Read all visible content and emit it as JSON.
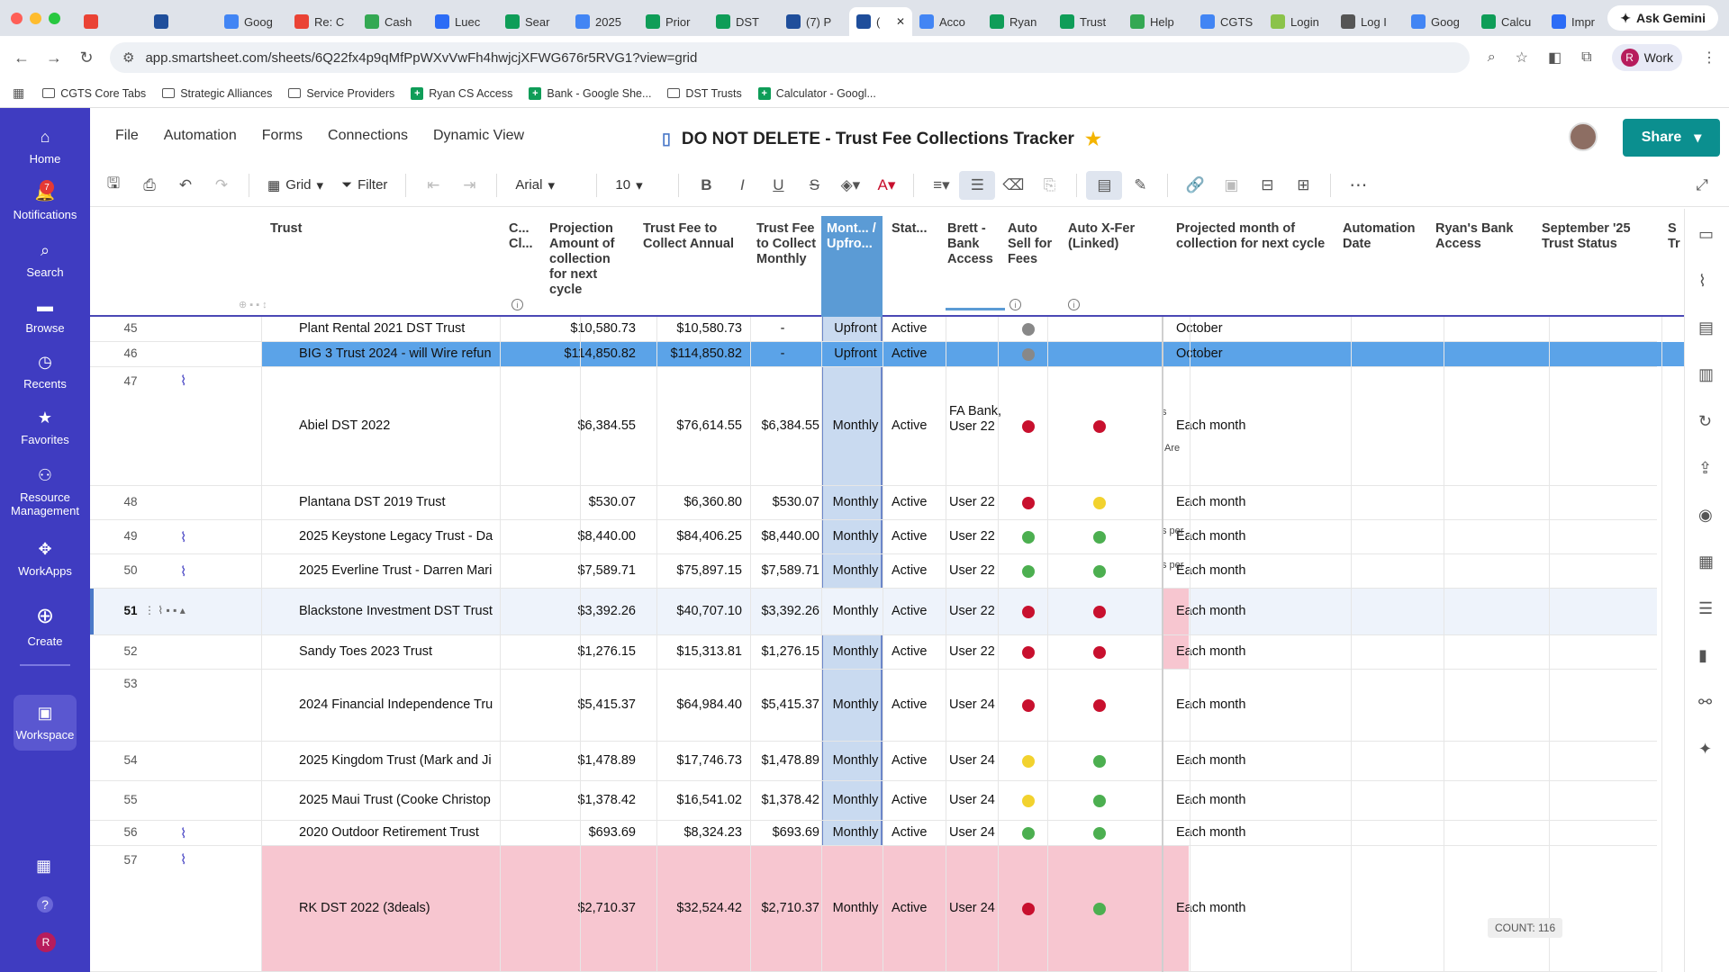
{
  "browser": {
    "tabs": [
      {
        "icon": "gmail-icon",
        "label": ""
      },
      {
        "icon": "smartsheet-icon",
        "label": ""
      },
      {
        "icon": "google-icon",
        "label": "Goog"
      },
      {
        "icon": "gmail-icon",
        "label": "Re: C"
      },
      {
        "icon": "cash-icon",
        "label": "Cash"
      },
      {
        "icon": "lucid-icon",
        "label": "Luec"
      },
      {
        "icon": "drive-icon",
        "label": "Sear"
      },
      {
        "icon": "doc-icon",
        "label": "2025"
      },
      {
        "icon": "sheet-icon",
        "label": "Prior"
      },
      {
        "icon": "sheet-icon",
        "label": "DST"
      },
      {
        "icon": "smartsheet-icon",
        "label": "(7) P"
      },
      {
        "icon": "smartsheet-icon",
        "label": "("
      },
      {
        "icon": "doc-icon",
        "label": "Acco"
      },
      {
        "icon": "sheet-icon",
        "label": "Ryan"
      },
      {
        "icon": "sheet-icon",
        "label": "Trust"
      },
      {
        "icon": "help-icon",
        "label": "Help"
      },
      {
        "icon": "doc-icon",
        "label": "CGTS"
      },
      {
        "icon": "login-icon",
        "label": "Login"
      },
      {
        "icon": "log-icon",
        "label": "Log I"
      },
      {
        "icon": "google-icon",
        "label": "Goog"
      },
      {
        "icon": "sheet-icon",
        "label": "Calcu"
      },
      {
        "icon": "lucid-icon",
        "label": "Impr"
      }
    ],
    "ask_gemini": "Ask Gemini",
    "url": "app.smartsheet.com/sheets/6Q22fx4p9qMfPpWXvVwFh4hwjcjXFWG676r5RVG1?view=grid",
    "profile": {
      "initial": "R",
      "label": "Work"
    },
    "bookmarks": [
      {
        "type": "folder",
        "label": "CGTS Core Tabs"
      },
      {
        "type": "folder",
        "label": "Strategic Alliances"
      },
      {
        "type": "folder",
        "label": "Service Providers"
      },
      {
        "type": "sheet",
        "label": "Ryan CS Access"
      },
      {
        "type": "sheet",
        "label": "Bank - Google She..."
      },
      {
        "type": "folder",
        "label": "DST Trusts"
      },
      {
        "type": "sheet",
        "label": "Calculator - Googl..."
      }
    ]
  },
  "leftnav": {
    "items": [
      {
        "icon": "home-icon",
        "label": "Home"
      },
      {
        "icon": "bell-icon",
        "label": "Notifications",
        "badge": "7"
      },
      {
        "icon": "search-icon",
        "label": "Search"
      },
      {
        "icon": "folder-icon",
        "label": "Browse"
      },
      {
        "icon": "clock-icon",
        "label": "Recents"
      },
      {
        "icon": "star-icon",
        "label": "Favorites"
      },
      {
        "icon": "people-icon",
        "label": "Resource Management"
      },
      {
        "icon": "workapps-icon",
        "label": "WorkApps"
      },
      {
        "icon": "plus-icon",
        "label": "Create"
      },
      {
        "icon": "workspace-icon",
        "label": "Workspace"
      }
    ],
    "user_initial": "R"
  },
  "menubar": [
    "File",
    "Automation",
    "Forms",
    "Connections",
    "Dynamic View"
  ],
  "sheet_title": "DO NOT DELETE - Trust Fee Collections Tracker",
  "share_label": "Share",
  "toolbar": {
    "view": "Grid",
    "filter": "Filter",
    "font": "Arial",
    "size": "10"
  },
  "columns": {
    "trust": "Trust",
    "c": "C... Cl...",
    "projection": "Projection Amount of collection for next cycle",
    "annual": "Trust Fee to Collect Annual",
    "monthly": "Trust Fee to Collect Monthly",
    "month": "Mont... / Upfro...",
    "status": "Stat...",
    "bank": "Brett - Bank Access",
    "autosell": "Auto Sell for Fees",
    "autoxfer": "Auto X-Fer (Linked)",
    "projected_month": "Projected month of collection for next cycle",
    "automation_date": "Automation Date",
    "ryan_bank": "Ryan's Bank Access",
    "sept": "September '25 Trust Status",
    "next": "S Tr"
  },
  "rows": [
    {
      "num": "45",
      "trust": "Plant Rental 2021 DST Trust",
      "projection": "$10,580.73",
      "annual": "$10,580.73",
      "monthly": "-",
      "month": "Upfront",
      "status": "Active",
      "bank": "",
      "autosell": "gray",
      "autoxfer": "",
      "projected": "October"
    },
    {
      "num": "46",
      "trust": "BIG 3 Trust 2024 - will Wire refun",
      "projection": "$114,850.82",
      "annual": "$114,850.82",
      "monthly": "-",
      "month": "Upfront",
      "status": "Active",
      "bank": "",
      "autosell": "gray",
      "autoxfer": "",
      "projected": "October"
    },
    {
      "num": "47",
      "trust": "Abiel DST 2022",
      "projection": "$6,384.55",
      "annual": "$76,614.55",
      "monthly": "$6,384.55",
      "month": "Monthly",
      "status": "Active",
      "bank": "FA Bank, User 22",
      "autosell": "red",
      "autoxfer": "red",
      "projected": "Each month",
      "side1": "s",
      "side2": "Are"
    },
    {
      "num": "48",
      "trust": "Plantana DST 2019 Trust",
      "projection": "$530.07",
      "annual": "$6,360.80",
      "monthly": "$530.07",
      "month": "Monthly",
      "status": "Active",
      "bank": "User 22",
      "autosell": "red",
      "autoxfer": "yellow",
      "projected": "Each month"
    },
    {
      "num": "49",
      "trust": "2025 Keystone Legacy Trust - Da",
      "projection": "$8,440.00",
      "annual": "$84,406.25",
      "monthly": "$8,440.00",
      "month": "Monthly",
      "status": "Active",
      "bank": "User 22",
      "autosell": "green",
      "autoxfer": "green",
      "projected": "Each month",
      "side1": "s per"
    },
    {
      "num": "50",
      "trust": "2025 Everline Trust - Darren Mari",
      "projection": "$7,589.71",
      "annual": "$75,897.15",
      "monthly": "$7,589.71",
      "month": "Monthly",
      "status": "Active",
      "bank": "User 22",
      "autosell": "green",
      "autoxfer": "green",
      "projected": "Each month",
      "side1": "s per"
    },
    {
      "num": "51",
      "trust": "Blackstone Investment DST Trust",
      "projection": "$3,392.26",
      "annual": "$40,707.10",
      "monthly": "$3,392.26",
      "month": "Monthly",
      "status": "Active",
      "bank": "User 22",
      "autosell": "red",
      "autoxfer": "red",
      "projected": "Each month"
    },
    {
      "num": "52",
      "trust": "Sandy Toes 2023 Trust",
      "projection": "$1,276.15",
      "annual": "$15,313.81",
      "monthly": "$1,276.15",
      "month": "Monthly",
      "status": "Active",
      "bank": "User 22",
      "autosell": "red",
      "autoxfer": "red",
      "projected": "Each month"
    },
    {
      "num": "53",
      "trust": "2024 Financial Independence Tru",
      "projection": "$5,415.37",
      "annual": "$64,984.40",
      "monthly": "$5,415.37",
      "month": "Monthly",
      "status": "Active",
      "bank": "User 24",
      "autosell": "red",
      "autoxfer": "red",
      "projected": "Each month"
    },
    {
      "num": "54",
      "trust": "2025 Kingdom Trust (Mark and Ji",
      "projection": "$1,478.89",
      "annual": "$17,746.73",
      "monthly": "$1,478.89",
      "month": "Monthly",
      "status": "Active",
      "bank": "User 24",
      "autosell": "yellow",
      "autoxfer": "green",
      "projected": "Each month"
    },
    {
      "num": "55",
      "trust": "2025 Maui Trust (Cooke Christop",
      "projection": "$1,378.42",
      "annual": "$16,541.02",
      "monthly": "$1,378.42",
      "month": "Monthly",
      "status": "Active",
      "bank": "User 24",
      "autosell": "yellow",
      "autoxfer": "green",
      "projected": "Each month"
    },
    {
      "num": "56",
      "trust": "2020 Outdoor Retirement Trust",
      "projection": "$693.69",
      "annual": "$8,324.23",
      "monthly": "$693.69",
      "month": "Monthly",
      "status": "Active",
      "bank": "User 24",
      "autosell": "green",
      "autoxfer": "green",
      "projected": "Each month"
    },
    {
      "num": "57",
      "trust": "RK DST 2022 (3deals)",
      "projection": "$2,710.37",
      "annual": "$32,524.42",
      "monthly": "$2,710.37",
      "month": "Monthly",
      "status": "Active",
      "bank": "User 24",
      "autosell": "red",
      "autoxfer": "green",
      "projected": "Each month"
    }
  ],
  "count_label": "COUNT: 116",
  "colors": {
    "nav": "#3f3cc1",
    "share": "#0b8f8f",
    "selected_row": "#5ba3e8",
    "pink": "#f7c6d0",
    "dot_red": "#c8102e",
    "dot_green": "#4caf50",
    "dot_yellow": "#f2d22e",
    "dot_gray": "#888888"
  }
}
